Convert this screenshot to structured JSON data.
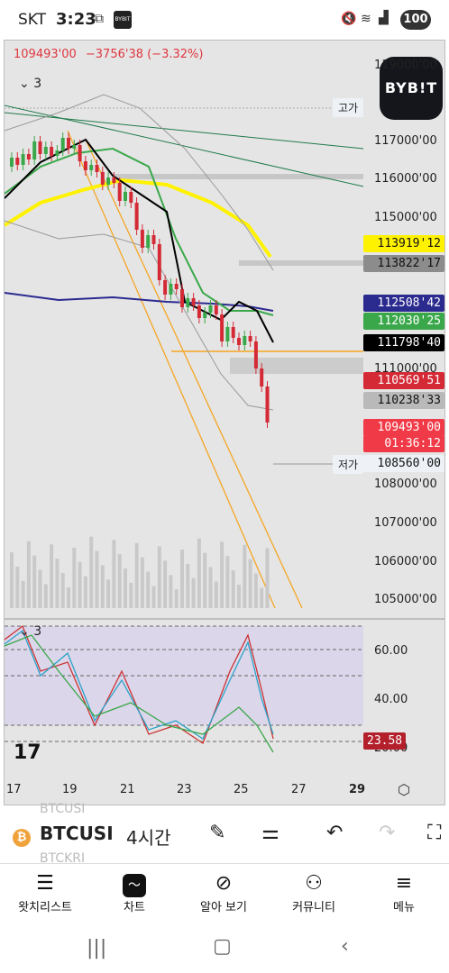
{
  "status_bar": {
    "carrier": "SKT",
    "time": "3:23",
    "battery": "100",
    "app_badge": "BYBIT"
  },
  "chart": {
    "last_price": "109493'00",
    "change": "−3756'38 (−3.32%)",
    "collapse_count_main": "3",
    "collapse_count_osc": "3",
    "high_tag": "고가",
    "low_tag": "저가",
    "brand": "BYB!T",
    "price_axis": [
      "119000'00",
      "117000'00",
      "116000'00",
      "115000'00",
      "111000'00",
      "108000'00",
      "107000'00",
      "106000'00",
      "105000'00"
    ],
    "price_labels": [
      {
        "text": "113919'12",
        "color": "#fff200",
        "text_color": "#111"
      },
      {
        "text": "113822'17",
        "color": "#8c8c8c",
        "text_color": "#111"
      },
      {
        "text": "112508'42",
        "color": "#2b2a8f",
        "text_color": "#fff"
      },
      {
        "text": "112030'25",
        "color": "#3aa84a",
        "text_color": "#fff"
      },
      {
        "text": "111798'40",
        "color": "#000000",
        "text_color": "#fff"
      },
      {
        "text": "110569'51",
        "color": "#d42a36",
        "text_color": "#fff"
      },
      {
        "text": "110238'33",
        "color": "#b9b9b9",
        "text_color": "#111"
      },
      {
        "text": "109493'00",
        "color": "#f03a47",
        "text_color": "#fff"
      },
      {
        "text": "01:36:12",
        "color": "#f03a47",
        "text_color": "#fff"
      },
      {
        "text": "108560'00",
        "color": "#eef2f6",
        "text_color": "#111"
      }
    ],
    "osc_axis": [
      "60.00",
      "40.00",
      "20.00"
    ],
    "osc_value": "23.58",
    "x_axis": [
      "17",
      "19",
      "21",
      "23",
      "25",
      "27",
      "29"
    ]
  },
  "toolbar": {
    "symbol": "BTCUSI",
    "symbol_prev": "BTCUSI",
    "symbol_next": "BTCKRI",
    "interval": "4시간"
  },
  "bottom_nav": [
    {
      "label": "왓치리스트",
      "icon": "watchlist-icon"
    },
    {
      "label": "차트",
      "icon": "chart-icon"
    },
    {
      "label": "알아 보기",
      "icon": "compass-icon"
    },
    {
      "label": "커뮤니티",
      "icon": "community-icon"
    },
    {
      "label": "메뉴",
      "icon": "menu-icon"
    }
  ],
  "colors": {
    "up": "#3aa84a",
    "down": "#d42a36",
    "ma_yellow": "#fff200",
    "ma_navy": "#2b2a8f"
  }
}
